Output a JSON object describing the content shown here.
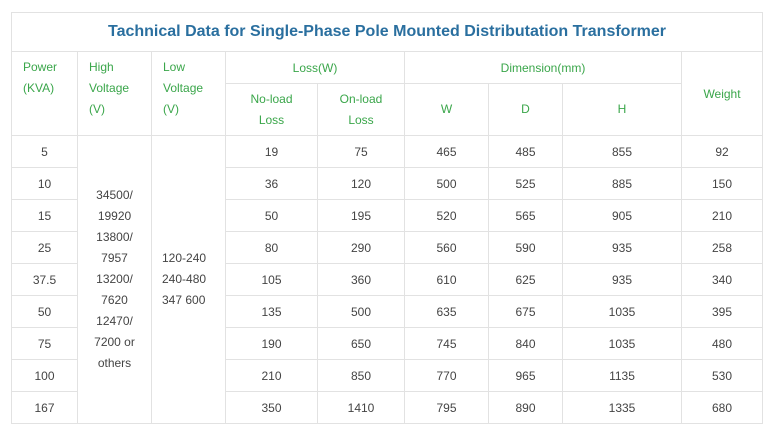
{
  "title": "Tachnical Data for Single-Phase Pole Mounted Distributation Transformer",
  "headers": {
    "power": [
      "Power",
      "(KVA)"
    ],
    "high_voltage": [
      "High",
      "Voltage",
      "(V)"
    ],
    "low_voltage": [
      "Low",
      "Voltage",
      "(V)"
    ],
    "loss_group": "Loss(W)",
    "no_load_loss": [
      "No-load",
      "Loss"
    ],
    "on_load_loss": [
      "On-load",
      "Loss"
    ],
    "dimension_group": "Dimension(mm)",
    "w": "W",
    "d": "D",
    "h": "H",
    "weight": "Weight"
  },
  "high_voltage_values": [
    "34500/",
    "19920",
    "13800/",
    "7957",
    "13200/",
    "7620",
    "12470/",
    "7200 or",
    "others"
  ],
  "low_voltage_values": [
    "120-240",
    "240-480",
    "347 600"
  ],
  "rows": [
    {
      "power": "5",
      "no_load": "19",
      "on_load": "75",
      "w": "465",
      "d": "485",
      "h": "855",
      "weight": "92"
    },
    {
      "power": "10",
      "no_load": "36",
      "on_load": "120",
      "w": "500",
      "d": "525",
      "h": "885",
      "weight": "150"
    },
    {
      "power": "15",
      "no_load": "50",
      "on_load": "195",
      "w": "520",
      "d": "565",
      "h": "905",
      "weight": "210"
    },
    {
      "power": "25",
      "no_load": "80",
      "on_load": "290",
      "w": "560",
      "d": "590",
      "h": "935",
      "weight": "258"
    },
    {
      "power": "37.5",
      "no_load": "105",
      "on_load": "360",
      "w": "610",
      "d": "625",
      "h": "935",
      "weight": "340"
    },
    {
      "power": "50",
      "no_load": "135",
      "on_load": "500",
      "w": "635",
      "d": "675",
      "h": "1035",
      "weight": "395"
    },
    {
      "power": "75",
      "no_load": "190",
      "on_load": "650",
      "w": "745",
      "d": "840",
      "h": "1035",
      "weight": "480"
    },
    {
      "power": "100",
      "no_load": "210",
      "on_load": "850",
      "w": "770",
      "d": "965",
      "h": "1135",
      "weight": "530"
    },
    {
      "power": "167",
      "no_load": "350",
      "on_load": "1410",
      "w": "795",
      "d": "890",
      "h": "1335",
      "weight": "680"
    }
  ],
  "colors": {
    "title": "#2a6f9f",
    "header_text": "#3aa64a",
    "body_text": "#444444",
    "border": "#e2e2e2"
  }
}
